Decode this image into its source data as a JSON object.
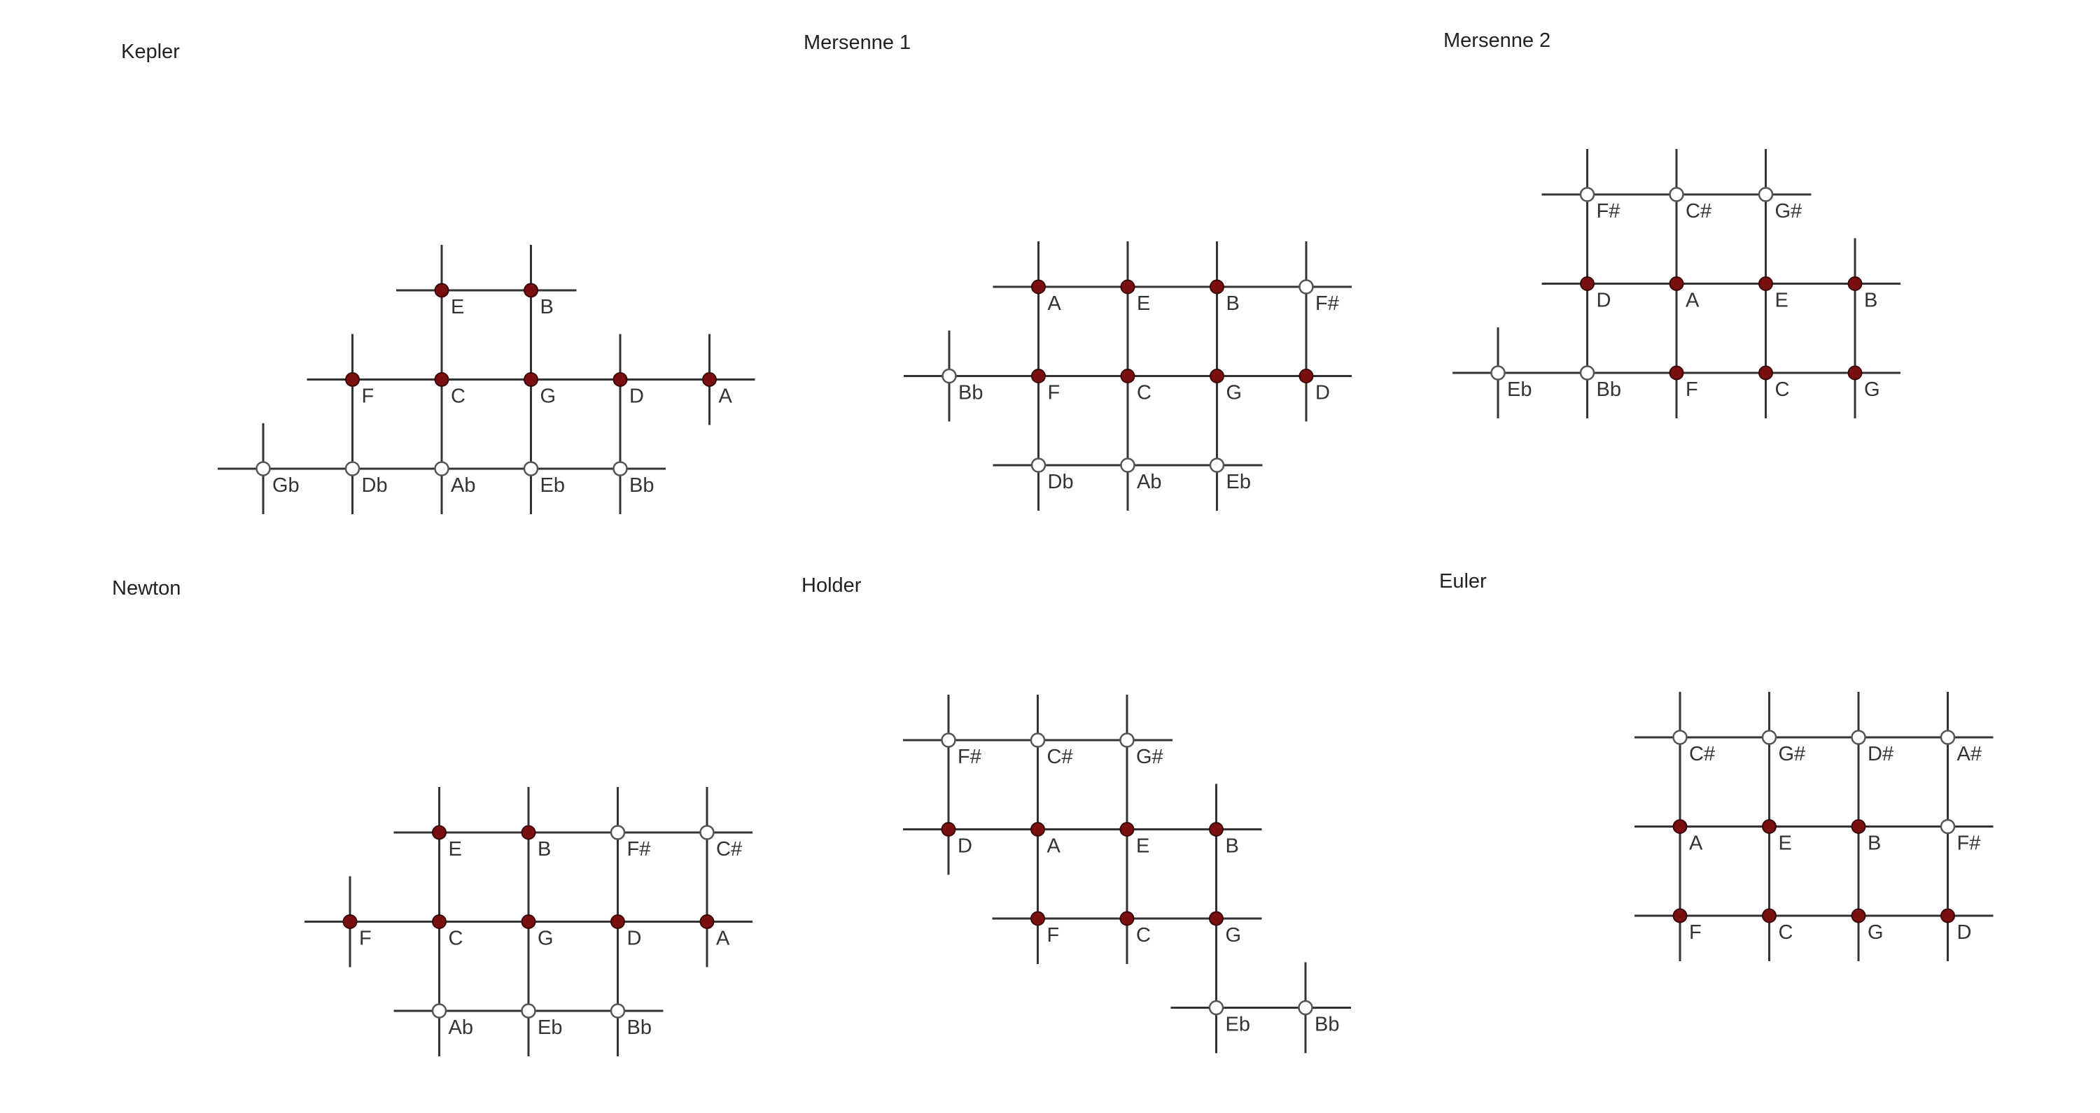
{
  "colors": {
    "filled_node": "#7a0f0f",
    "open_node": "#ffffff",
    "line": "#333333",
    "text": "#222222"
  },
  "panels": [
    {
      "title": "Kepler",
      "nodes": [
        {
          "r": 0,
          "c": 2,
          "note": "E",
          "filled": true
        },
        {
          "r": 0,
          "c": 3,
          "note": "B",
          "filled": true
        },
        {
          "r": 1,
          "c": 1,
          "note": "F",
          "filled": true
        },
        {
          "r": 1,
          "c": 2,
          "note": "C",
          "filled": true
        },
        {
          "r": 1,
          "c": 3,
          "note": "G",
          "filled": true
        },
        {
          "r": 1,
          "c": 4,
          "note": "D",
          "filled": true
        },
        {
          "r": 1,
          "c": 5,
          "note": "A",
          "filled": true
        },
        {
          "r": 2,
          "c": 0,
          "note": "Gb",
          "filled": false
        },
        {
          "r": 2,
          "c": 1,
          "note": "Db",
          "filled": false
        },
        {
          "r": 2,
          "c": 2,
          "note": "Ab",
          "filled": false
        },
        {
          "r": 2,
          "c": 3,
          "note": "Eb",
          "filled": false
        },
        {
          "r": 2,
          "c": 4,
          "note": "Bb",
          "filled": false
        }
      ]
    },
    {
      "title": "Mersenne 1",
      "nodes": [
        {
          "r": 0,
          "c": 1,
          "note": "A",
          "filled": true
        },
        {
          "r": 0,
          "c": 2,
          "note": "E",
          "filled": true
        },
        {
          "r": 0,
          "c": 3,
          "note": "B",
          "filled": true
        },
        {
          "r": 0,
          "c": 4,
          "note": "F#",
          "filled": false
        },
        {
          "r": 1,
          "c": 0,
          "note": "Bb",
          "filled": false
        },
        {
          "r": 1,
          "c": 1,
          "note": "F",
          "filled": true
        },
        {
          "r": 1,
          "c": 2,
          "note": "C",
          "filled": true
        },
        {
          "r": 1,
          "c": 3,
          "note": "G",
          "filled": true
        },
        {
          "r": 1,
          "c": 4,
          "note": "D",
          "filled": true
        },
        {
          "r": 2,
          "c": 1,
          "note": "Db",
          "filled": false
        },
        {
          "r": 2,
          "c": 2,
          "note": "Ab",
          "filled": false
        },
        {
          "r": 2,
          "c": 3,
          "note": "Eb",
          "filled": false
        }
      ]
    },
    {
      "title": "Mersenne 2",
      "nodes": [
        {
          "r": 0,
          "c": 1,
          "note": "F#",
          "filled": false
        },
        {
          "r": 0,
          "c": 2,
          "note": "C#",
          "filled": false
        },
        {
          "r": 0,
          "c": 3,
          "note": "G#",
          "filled": false
        },
        {
          "r": 1,
          "c": 1,
          "note": "D",
          "filled": true
        },
        {
          "r": 1,
          "c": 2,
          "note": "A",
          "filled": true
        },
        {
          "r": 1,
          "c": 3,
          "note": "E",
          "filled": true
        },
        {
          "r": 1,
          "c": 4,
          "note": "B",
          "filled": true
        },
        {
          "r": 2,
          "c": 0,
          "note": "Eb",
          "filled": false
        },
        {
          "r": 2,
          "c": 1,
          "note": "Bb",
          "filled": false
        },
        {
          "r": 2,
          "c": 2,
          "note": "F",
          "filled": true
        },
        {
          "r": 2,
          "c": 3,
          "note": "C",
          "filled": true
        },
        {
          "r": 2,
          "c": 4,
          "note": "G",
          "filled": true
        }
      ]
    },
    {
      "title": "Newton",
      "nodes": [
        {
          "r": 0,
          "c": 1,
          "note": "E",
          "filled": true
        },
        {
          "r": 0,
          "c": 2,
          "note": "B",
          "filled": true
        },
        {
          "r": 0,
          "c": 3,
          "note": "F#",
          "filled": false
        },
        {
          "r": 0,
          "c": 4,
          "note": "C#",
          "filled": false
        },
        {
          "r": 1,
          "c": 0,
          "note": "F",
          "filled": true
        },
        {
          "r": 1,
          "c": 1,
          "note": "C",
          "filled": true
        },
        {
          "r": 1,
          "c": 2,
          "note": "G",
          "filled": true
        },
        {
          "r": 1,
          "c": 3,
          "note": "D",
          "filled": true
        },
        {
          "r": 1,
          "c": 4,
          "note": "A",
          "filled": true
        },
        {
          "r": 2,
          "c": 1,
          "note": "Ab",
          "filled": false
        },
        {
          "r": 2,
          "c": 2,
          "note": "Eb",
          "filled": false
        },
        {
          "r": 2,
          "c": 3,
          "note": "Bb",
          "filled": false
        }
      ]
    },
    {
      "title": "Holder",
      "nodes": [
        {
          "r": 0,
          "c": 0,
          "note": "F#",
          "filled": false
        },
        {
          "r": 0,
          "c": 1,
          "note": "C#",
          "filled": false
        },
        {
          "r": 0,
          "c": 2,
          "note": "G#",
          "filled": false
        },
        {
          "r": 1,
          "c": 0,
          "note": "D",
          "filled": true
        },
        {
          "r": 1,
          "c": 1,
          "note": "A",
          "filled": true
        },
        {
          "r": 1,
          "c": 2,
          "note": "E",
          "filled": true
        },
        {
          "r": 1,
          "c": 3,
          "note": "B",
          "filled": true
        },
        {
          "r": 2,
          "c": 1,
          "note": "F",
          "filled": true
        },
        {
          "r": 2,
          "c": 2,
          "note": "C",
          "filled": true
        },
        {
          "r": 2,
          "c": 3,
          "note": "G",
          "filled": true
        },
        {
          "r": 3,
          "c": 3,
          "note": "Eb",
          "filled": false
        },
        {
          "r": 3,
          "c": 4,
          "note": "Bb",
          "filled": false
        }
      ]
    },
    {
      "title": "Euler",
      "nodes": [
        {
          "r": 0,
          "c": 0,
          "note": "C#",
          "filled": false
        },
        {
          "r": 0,
          "c": 1,
          "note": "G#",
          "filled": false
        },
        {
          "r": 0,
          "c": 2,
          "note": "D#",
          "filled": false
        },
        {
          "r": 0,
          "c": 3,
          "note": "A#",
          "filled": false
        },
        {
          "r": 1,
          "c": 0,
          "note": "A",
          "filled": true
        },
        {
          "r": 1,
          "c": 1,
          "note": "E",
          "filled": true
        },
        {
          "r": 1,
          "c": 2,
          "note": "B",
          "filled": true
        },
        {
          "r": 1,
          "c": 3,
          "note": "F#",
          "filled": false
        },
        {
          "r": 2,
          "c": 0,
          "note": "F",
          "filled": true
        },
        {
          "r": 2,
          "c": 1,
          "note": "C",
          "filled": true
        },
        {
          "r": 2,
          "c": 2,
          "note": "G",
          "filled": true
        },
        {
          "r": 2,
          "c": 3,
          "note": "D",
          "filled": true
        }
      ]
    }
  ]
}
